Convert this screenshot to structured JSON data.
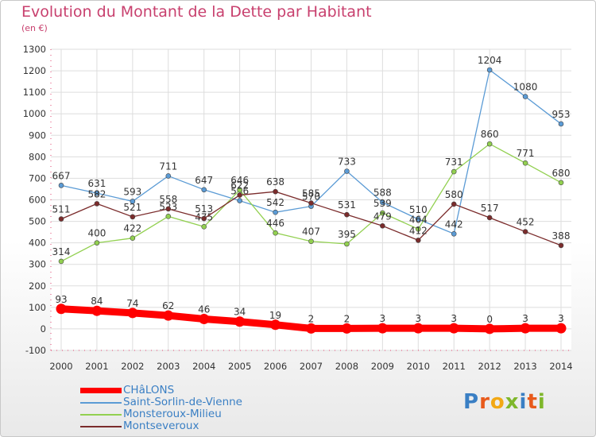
{
  "header": {
    "title": "Evolution du Montant de la Dette par Habitant",
    "subtitle": "(en €)"
  },
  "logo": {
    "text": "Proxiti",
    "colors": [
      "#3a7fc4",
      "#e85a1b",
      "#f2a814",
      "#7fb72b",
      "#3a7fc4",
      "#e85a1b",
      "#7fb72b"
    ]
  },
  "chart_data": {
    "type": "line",
    "x": [
      "2000",
      "2001",
      "2002",
      "2003",
      "2004",
      "2005",
      "2006",
      "2007",
      "2008",
      "2009",
      "2010",
      "2011",
      "2012",
      "2013",
      "2014"
    ],
    "ylim": [
      -100,
      1300
    ],
    "yticks": [
      -100,
      0,
      100,
      200,
      300,
      400,
      500,
      600,
      700,
      800,
      900,
      1000,
      1100,
      1200,
      1300
    ],
    "grid": true,
    "legend_position": "bottom-left",
    "series": [
      {
        "name": "CHâLONS",
        "color": "#ff0000",
        "values": [
          93,
          84,
          74,
          62,
          46,
          34,
          19,
          2,
          2,
          3,
          3,
          3,
          0,
          3,
          3
        ],
        "emphasized": true
      },
      {
        "name": "Saint-Sorlin-de-Vienne",
        "color": "#5b9bd5",
        "values": [
          667,
          631,
          593,
          711,
          647,
          596,
          542,
          570,
          733,
          588,
          510,
          442,
          1204,
          1080,
          953
        ]
      },
      {
        "name": "Monsteroux-Milieu",
        "color": "#92d050",
        "values": [
          314,
          400,
          422,
          523,
          475,
          646,
          446,
          407,
          395,
          539,
          464,
          731,
          860,
          771,
          680
        ]
      },
      {
        "name": "Montseveroux",
        "color": "#7b2c2c",
        "values": [
          511,
          582,
          521,
          558,
          513,
          622,
          638,
          585,
          531,
          479,
          412,
          580,
          517,
          452,
          388
        ]
      }
    ]
  }
}
